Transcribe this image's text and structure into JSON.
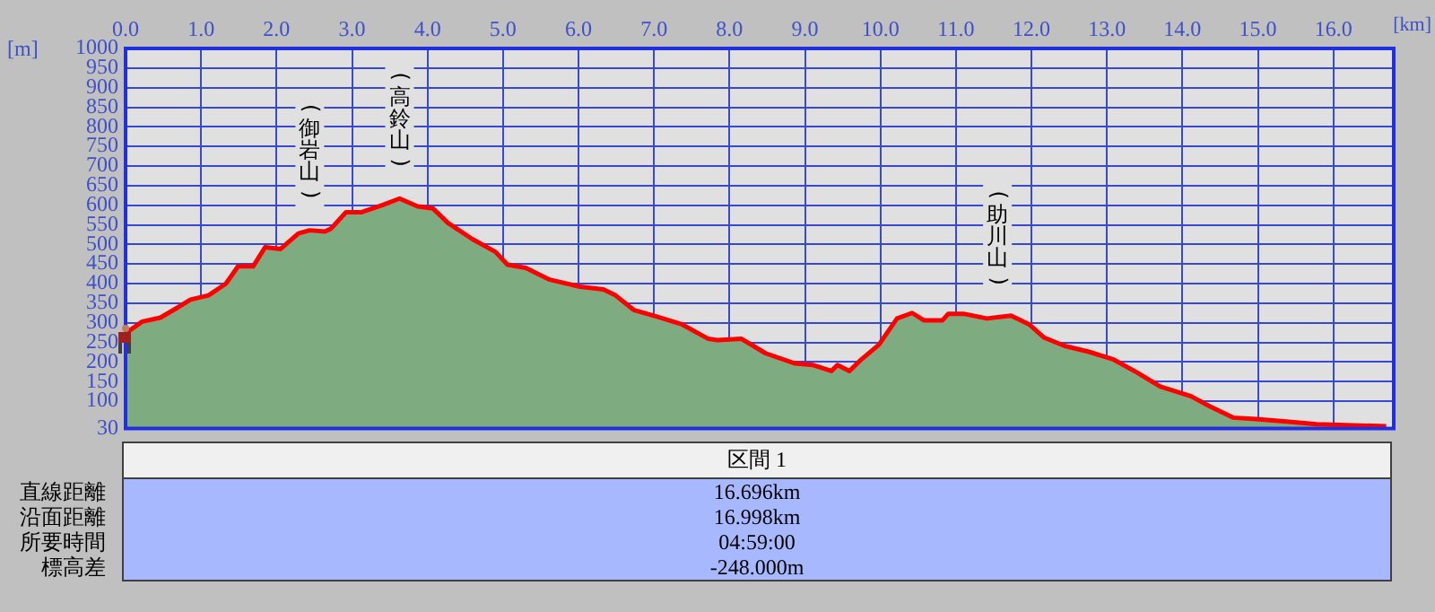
{
  "chart_data": {
    "type": "area",
    "xlabel": "[km]",
    "ylabel": "[m]",
    "x": [
      0,
      0.22,
      0.46,
      0.7,
      0.86,
      1.1,
      1.33,
      1.49,
      1.69,
      1.85,
      2.05,
      2.29,
      2.44,
      2.64,
      2.72,
      2.92,
      3.12,
      3.4,
      3.63,
      3.87,
      4.07,
      4.27,
      4.59,
      4.9,
      5.06,
      5.3,
      5.62,
      6.02,
      6.33,
      6.49,
      6.73,
      7.05,
      7.37,
      7.72,
      7.84,
      8.16,
      8.48,
      8.87,
      9.11,
      9.35,
      9.43,
      9.59,
      9.75,
      9.98,
      10.22,
      10.42,
      10.58,
      10.82,
      10.9,
      11.1,
      11.41,
      11.73,
      11.97,
      12.17,
      12.44,
      12.76,
      13.08,
      13.4,
      13.71,
      14.11,
      14.35,
      14.67,
      14.98,
      15.38,
      15.78,
      16.17,
      16.7
    ],
    "series": [
      {
        "color": "#7fab80",
        "values": [
          273,
          303,
          313,
          340,
          359,
          370,
          400,
          444,
          444,
          493,
          488,
          528,
          536,
          533,
          540,
          582,
          582,
          600,
          617,
          597,
          592,
          555,
          514,
          481,
          448,
          440,
          410,
          392,
          385,
          370,
          333,
          315,
          296,
          259,
          256,
          259,
          222,
          196,
          192,
          177,
          192,
          177,
          207,
          244,
          311,
          325,
          306,
          306,
          323,
          323,
          311,
          318,
          296,
          262,
          241,
          226,
          207,
          173,
          137,
          113,
          88,
          58,
          54,
          48,
          41,
          39,
          36
        ]
      },
      {
        "type": "line",
        "color": "#ff0000",
        "values": [
          273,
          303,
          313,
          340,
          359,
          370,
          400,
          444,
          444,
          493,
          488,
          528,
          536,
          533,
          540,
          582,
          582,
          600,
          617,
          597,
          592,
          555,
          514,
          481,
          448,
          440,
          410,
          392,
          385,
          370,
          333,
          315,
          296,
          259,
          256,
          259,
          222,
          196,
          192,
          177,
          192,
          177,
          207,
          244,
          311,
          325,
          306,
          306,
          323,
          323,
          311,
          318,
          296,
          262,
          241,
          226,
          207,
          173,
          137,
          113,
          88,
          58,
          54,
          48,
          41,
          39,
          36
        ]
      }
    ],
    "xlim": [
      0,
      16.8
    ],
    "xticks": [
      {
        "value": 0,
        "label": "0.0"
      },
      {
        "value": 1,
        "label": "1.0"
      },
      {
        "value": 2,
        "label": "2.0"
      },
      {
        "value": 3,
        "label": "3.0"
      },
      {
        "value": 4,
        "label": "4.0"
      },
      {
        "value": 5,
        "label": "5.0"
      },
      {
        "value": 6,
        "label": "6.0"
      },
      {
        "value": 7,
        "label": "7.0"
      },
      {
        "value": 8,
        "label": "8.0"
      },
      {
        "value": 9,
        "label": "9.0"
      },
      {
        "value": 10,
        "label": "10.0"
      },
      {
        "value": 11,
        "label": "11.0"
      },
      {
        "value": 12,
        "label": "12.0"
      },
      {
        "value": 13,
        "label": "13.0"
      },
      {
        "value": 14,
        "label": "14.0"
      },
      {
        "value": 15,
        "label": "15.0"
      },
      {
        "value": 16,
        "label": "16.0"
      }
    ],
    "ylim": [
      30,
      1000
    ],
    "yticks": [
      30,
      100,
      150,
      200,
      250,
      300,
      350,
      400,
      450,
      500,
      550,
      600,
      650,
      700,
      750,
      800,
      850,
      900,
      950,
      1000
    ],
    "grid": true,
    "legend": false,
    "line_style": "solid",
    "marker": "none",
    "annotations": [
      {
        "text": "(御岩山)",
        "x": 2.44,
        "y": 536
      },
      {
        "text": "(高鈴山)",
        "x": 3.63,
        "y": 617
      },
      {
        "text": "(助川山)",
        "x": 11.55,
        "y": 315
      },
      "区間 1",
      "直線距離",
      "16.696km",
      "沿面距離",
      "16.998km",
      "所要時間",
      "04:59:00",
      "標高差",
      "-248.000m"
    ]
  }
}
